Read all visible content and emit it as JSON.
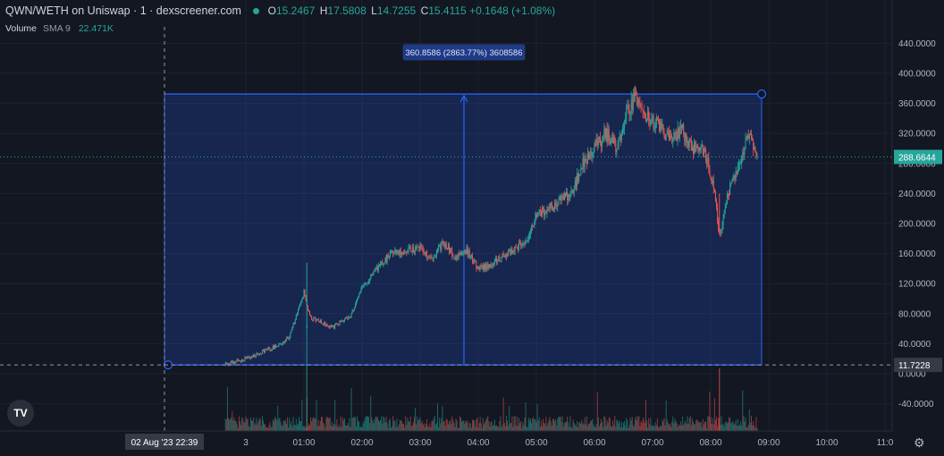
{
  "header": {
    "title": "QWN/WETH on Uniswap · 1 · dexscreener.com",
    "ohlc": [
      {
        "key": "O",
        "value": "15.2467"
      },
      {
        "key": "H",
        "value": "17.5808"
      },
      {
        "key": "L",
        "value": "14.7255"
      },
      {
        "key": "C",
        "value": "15.4115"
      }
    ],
    "change": "+0.1648 (+1.08%)",
    "volume_label": "Volume",
    "sma_label": "SMA 9",
    "volume_value": "22.471K"
  },
  "colors": {
    "background": "#131722",
    "up": "#26a69a",
    "down": "#ef5350",
    "selection": "#2962ff"
  },
  "chart_data": {
    "type": "candlestick",
    "y_ticks": [
      "440.0000",
      "400.0000",
      "360.0000",
      "320.0000",
      "280.0000",
      "240.0000",
      "200.0000",
      "160.0000",
      "120.0000",
      "80.0000",
      "40.0000",
      "0.0000",
      "-40.0000"
    ],
    "x_ticks": [
      "3",
      "01:00",
      "02:00",
      "03:00",
      "04:00",
      "05:00",
      "06:00",
      "07:00",
      "08:00",
      "09:00",
      "10:00",
      "11:0"
    ],
    "crosshair_x_label": "02 Aug '23   22:39",
    "last_price_label": "288.6644",
    "base_price_label": "11.7228",
    "measure_label": "360.8586 (2863.77%) 3608586",
    "ylim": [
      -40,
      440
    ],
    "series_close": [
      [
        22.65,
        12
      ],
      [
        22.9,
        18
      ],
      [
        23.2,
        26
      ],
      [
        23.5,
        36
      ],
      [
        23.75,
        48
      ],
      [
        24.0,
        110
      ],
      [
        24.1,
        75
      ],
      [
        24.5,
        62
      ],
      [
        24.8,
        78
      ],
      [
        25.0,
        115
      ],
      [
        25.25,
        140
      ],
      [
        25.5,
        160
      ],
      [
        25.75,
        165
      ],
      [
        26.0,
        168
      ],
      [
        26.2,
        150
      ],
      [
        26.4,
        175
      ],
      [
        26.6,
        155
      ],
      [
        26.8,
        165
      ],
      [
        27.0,
        140
      ],
      [
        27.2,
        145
      ],
      [
        27.4,
        155
      ],
      [
        27.6,
        165
      ],
      [
        27.8,
        175
      ],
      [
        28.0,
        210
      ],
      [
        28.2,
        220
      ],
      [
        28.4,
        230
      ],
      [
        28.6,
        240
      ],
      [
        28.8,
        280
      ],
      [
        29.0,
        300
      ],
      [
        29.2,
        320
      ],
      [
        29.4,
        300
      ],
      [
        29.55,
        350
      ],
      [
        29.7,
        365
      ],
      [
        29.9,
        345
      ],
      [
        30.1,
        330
      ],
      [
        30.3,
        310
      ],
      [
        30.5,
        325
      ],
      [
        30.7,
        300
      ],
      [
        30.9,
        295
      ],
      [
        31.05,
        250
      ],
      [
        31.15,
        185
      ],
      [
        31.3,
        240
      ],
      [
        31.5,
        280
      ],
      [
        31.65,
        320
      ],
      [
        31.75,
        300
      ],
      [
        31.8,
        289
      ]
    ]
  }
}
